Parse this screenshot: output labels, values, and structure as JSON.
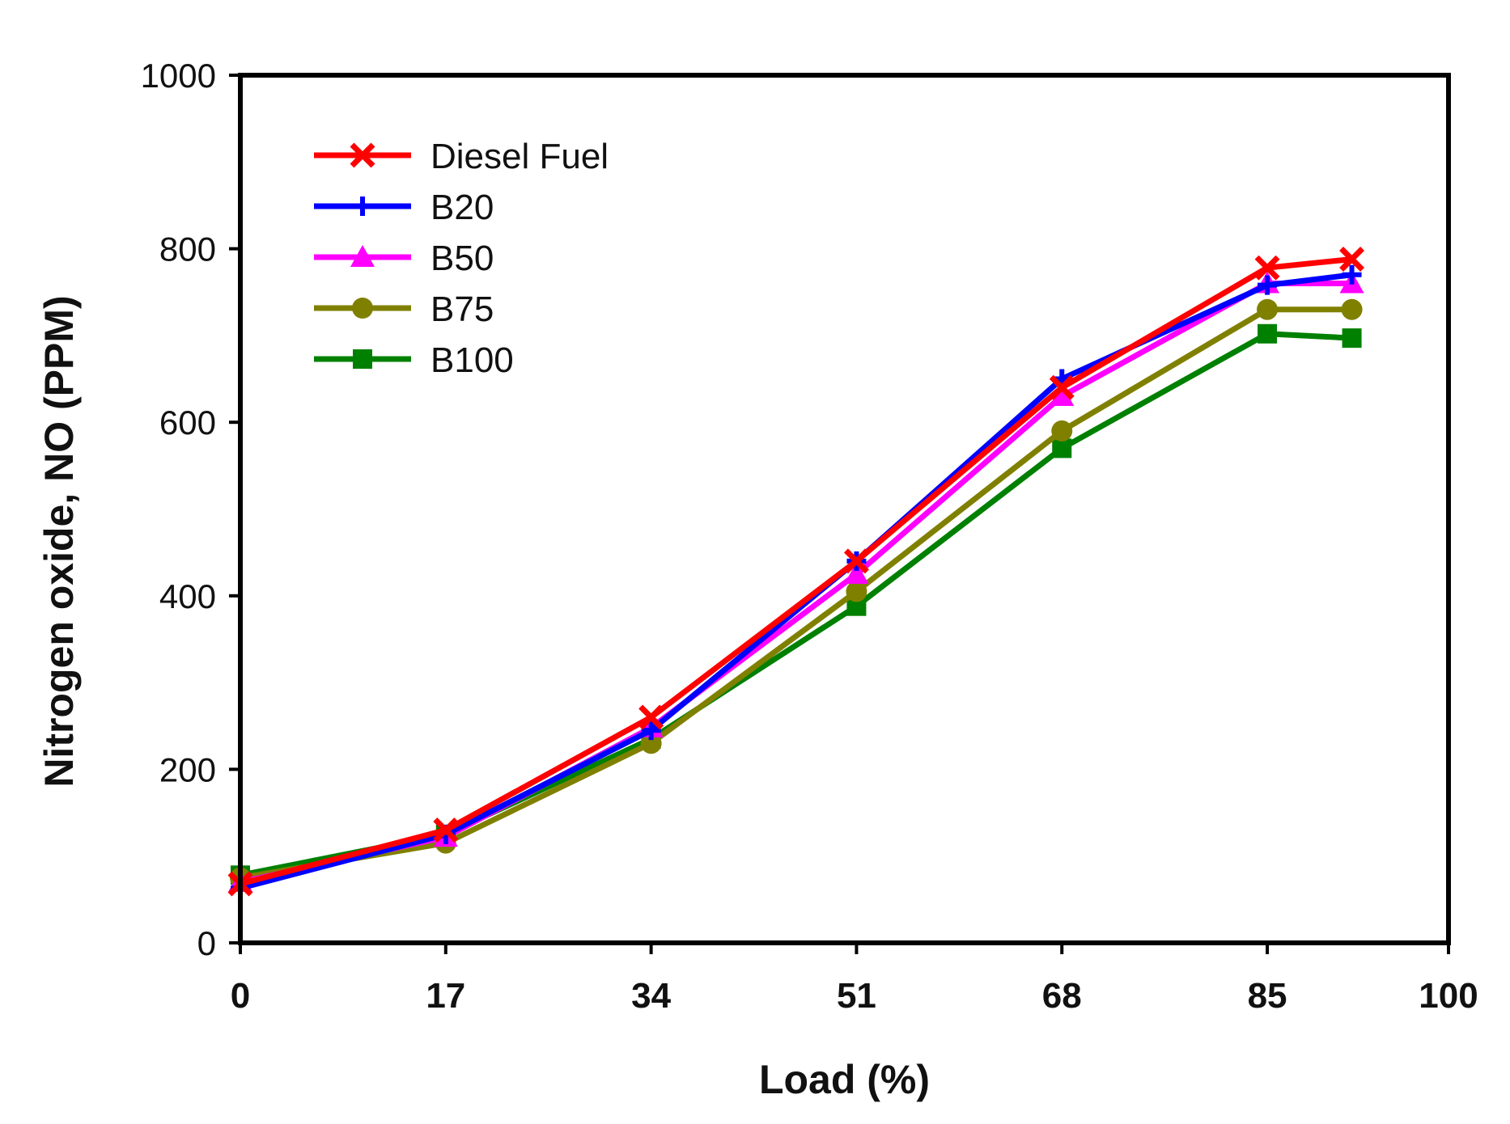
{
  "chart_data": {
    "type": "line",
    "xlabel": "Load (%)",
    "ylabel": "Nitrogen oxide, NO (PPM)",
    "xlim": [
      0,
      100
    ],
    "ylim": [
      0,
      1000
    ],
    "xticks": [
      "0",
      "17",
      "34",
      "51",
      "68",
      "85",
      "100"
    ],
    "xtick_values": [
      0,
      17,
      34,
      51,
      68,
      85,
      100
    ],
    "yticks": [
      "0",
      "200",
      "400",
      "600",
      "800",
      "1000"
    ],
    "ytick_values": [
      0,
      200,
      400,
      600,
      800,
      1000
    ],
    "grid": false,
    "legend_position": "top-left",
    "x": [
      0,
      17,
      34,
      51,
      68,
      85,
      92
    ],
    "series": [
      {
        "name": "Diesel Fuel",
        "color": "#ff0000",
        "marker": "x",
        "values": [
          68,
          130,
          260,
          440,
          640,
          778,
          788
        ]
      },
      {
        "name": "B20",
        "color": "#0000ff",
        "marker": "plus",
        "values": [
          63,
          125,
          245,
          440,
          650,
          758,
          770
        ]
      },
      {
        "name": "B50",
        "color": "#ff00ff",
        "marker": "triangle",
        "values": [
          70,
          122,
          248,
          425,
          630,
          760,
          760
        ]
      },
      {
        "name": "B75",
        "color": "#808000",
        "marker": "circle",
        "values": [
          75,
          115,
          230,
          405,
          590,
          730,
          730
        ]
      },
      {
        "name": "B100",
        "color": "#008000",
        "marker": "square",
        "values": [
          78,
          125,
          235,
          388,
          570,
          702,
          697
        ]
      }
    ]
  }
}
